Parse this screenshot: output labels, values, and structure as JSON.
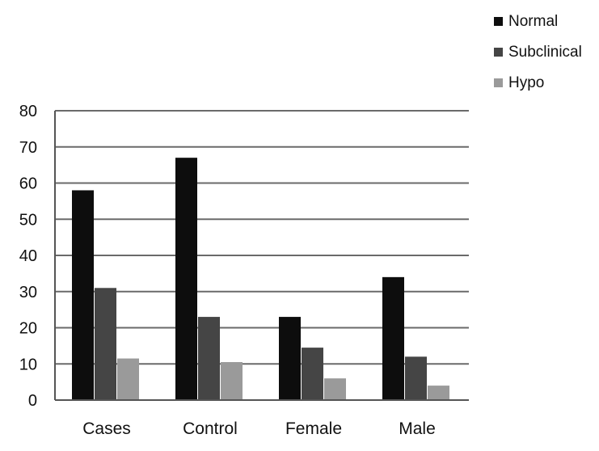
{
  "chart_data": {
    "type": "bar",
    "title": "",
    "xlabel": "",
    "ylabel": "",
    "categories": [
      "Cases",
      "Control",
      "Female",
      "Male"
    ],
    "series": [
      {
        "name": "Normal",
        "values": [
          58,
          67,
          23,
          34
        ],
        "color": "#0d0d0d"
      },
      {
        "name": "Subclinical",
        "values": [
          31,
          23,
          14.5,
          12
        ],
        "color": "#454545"
      },
      {
        "name": "Hypo",
        "values": [
          11.5,
          10.5,
          6,
          4
        ],
        "color": "#9a9a9a"
      }
    ],
    "ylim": [
      0,
      80
    ],
    "yticks": [
      "0",
      "10",
      "20",
      "30",
      "40",
      "50",
      "60",
      "70",
      "80"
    ],
    "grid": true,
    "legend_position": "top-right"
  }
}
